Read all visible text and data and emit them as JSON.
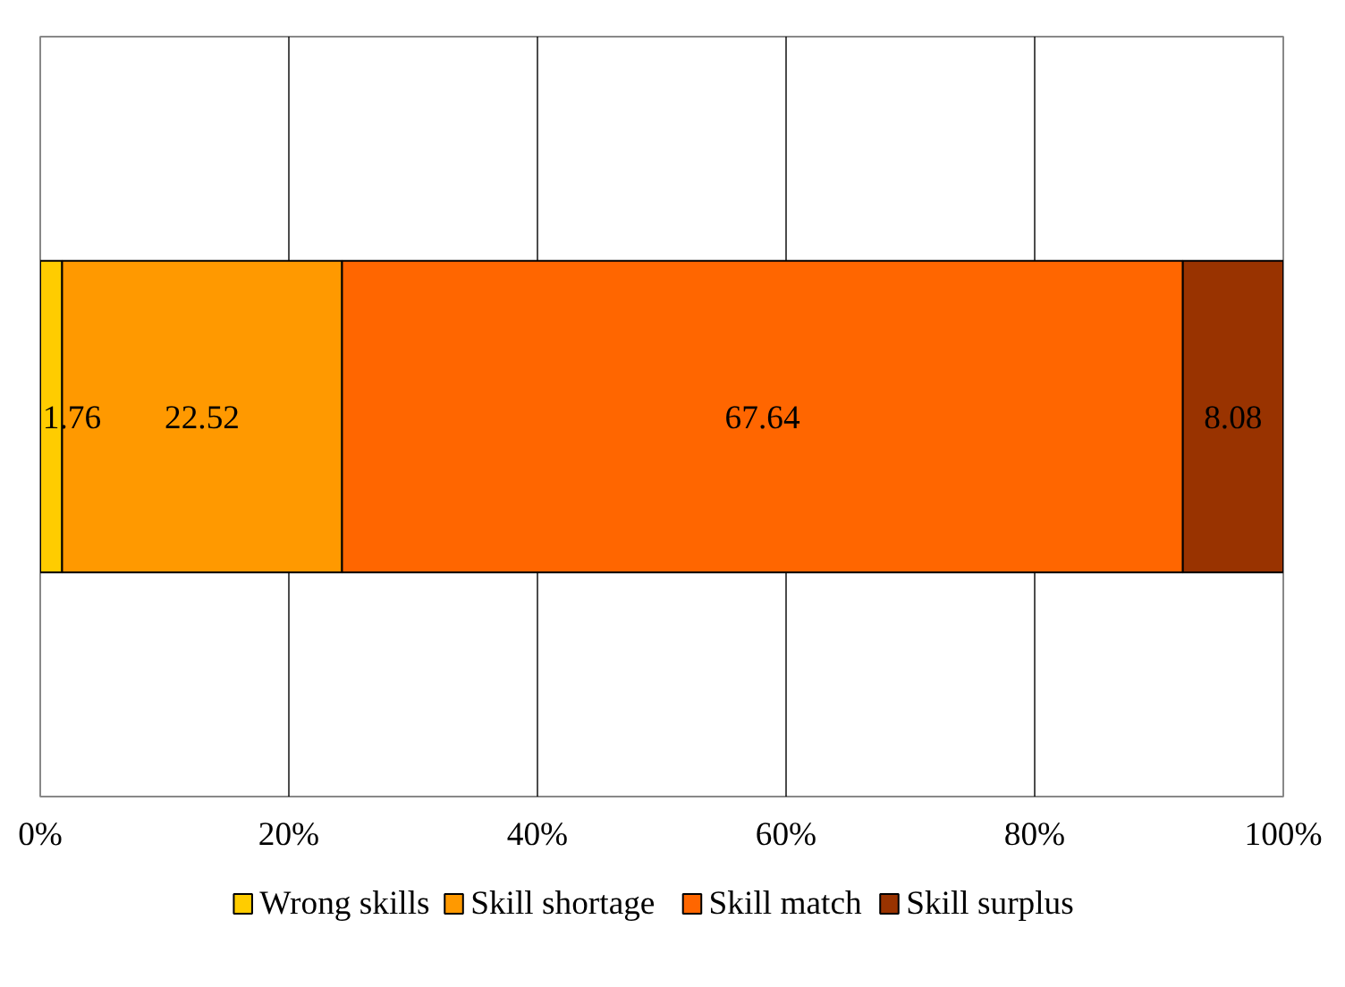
{
  "chart_data": {
    "type": "bar",
    "orientation": "horizontal",
    "stacked": true,
    "categories": [
      null
    ],
    "series": [
      {
        "name": "Wrong skills",
        "color": "#ffcc00",
        "values": [
          1.76
        ]
      },
      {
        "name": "Skill shortage",
        "color": "#ff9900",
        "values": [
          22.52
        ]
      },
      {
        "name": "Skill match",
        "color": "#ff6600",
        "values": [
          67.64
        ]
      },
      {
        "name": "Skill surplus",
        "color": "#993300",
        "values": [
          8.08
        ]
      }
    ],
    "xlim": [
      0,
      100
    ],
    "xticks": [
      {
        "value": 0,
        "label": "0%"
      },
      {
        "value": 20,
        "label": "20%"
      },
      {
        "value": 40,
        "label": "40%"
      },
      {
        "value": 60,
        "label": "60%"
      },
      {
        "value": 80,
        "label": "80%"
      },
      {
        "value": 100,
        "label": "100%"
      }
    ],
    "grid": "x",
    "legend": "bottom",
    "data_labels": true
  }
}
